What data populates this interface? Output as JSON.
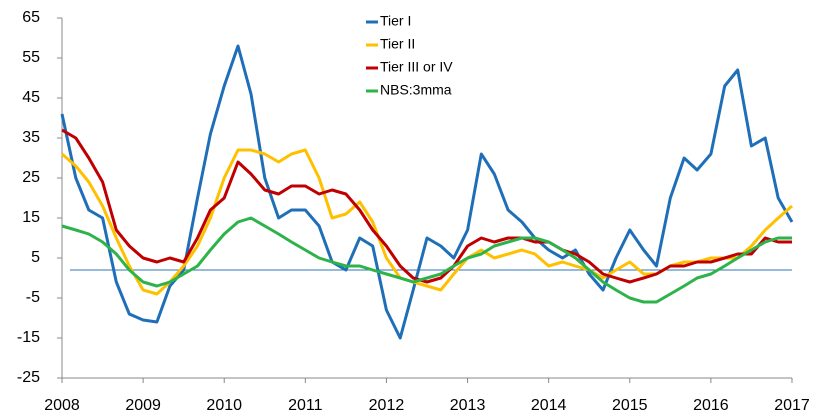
{
  "chart_data": {
    "type": "line",
    "x": [
      2008,
      2008.17,
      2008.33,
      2008.5,
      2008.67,
      2008.83,
      2009,
      2009.17,
      2009.33,
      2009.5,
      2009.67,
      2009.83,
      2010,
      2010.17,
      2010.33,
      2010.5,
      2010.67,
      2010.83,
      2011,
      2011.17,
      2011.33,
      2011.5,
      2011.67,
      2011.83,
      2012,
      2012.17,
      2012.33,
      2012.5,
      2012.67,
      2012.83,
      2013,
      2013.17,
      2013.33,
      2013.5,
      2013.67,
      2013.83,
      2014,
      2014.17,
      2014.33,
      2014.5,
      2014.67,
      2014.83,
      2015,
      2015.17,
      2015.33,
      2015.5,
      2015.67,
      2015.83,
      2016,
      2016.17,
      2016.33,
      2016.5,
      2016.67,
      2016.83,
      2017
    ],
    "series": [
      {
        "name": "Tier I",
        "color": "#1f6fb8",
        "values": [
          41,
          25,
          17,
          15,
          -1,
          -9,
          -10.5,
          -11,
          -2,
          2,
          20,
          36,
          48,
          58,
          46,
          25,
          15,
          17,
          17,
          13,
          4,
          2,
          10,
          8,
          -8,
          -15,
          -3,
          10,
          8,
          5,
          12,
          31,
          26,
          17,
          14,
          10,
          7,
          5,
          7,
          1,
          -3,
          5,
          12,
          7,
          3,
          20,
          30,
          27,
          31,
          48,
          52,
          33,
          35,
          20,
          14
        ]
      },
      {
        "name": "Tier II",
        "color": "#ffc000",
        "values": [
          31,
          28,
          24,
          18,
          10,
          3,
          -3,
          -4,
          -1,
          3,
          8,
          15,
          25,
          32,
          32,
          31,
          29,
          31,
          32,
          25,
          15,
          16,
          19,
          14,
          5,
          0,
          -1,
          -2,
          -3,
          1,
          5,
          7,
          5,
          6,
          7,
          6,
          3,
          4,
          3,
          2,
          0,
          2,
          4,
          1,
          1,
          3,
          4,
          4,
          5,
          5,
          5,
          8,
          12,
          15,
          18
        ]
      },
      {
        "name": "Tier III or IV",
        "color": "#c00000",
        "values": [
          37,
          35,
          30,
          24,
          12,
          8,
          5,
          4,
          5,
          4,
          10,
          17,
          20,
          29,
          26,
          22,
          21,
          23,
          23,
          21,
          22,
          21,
          17,
          12,
          8,
          3,
          0,
          -1,
          0,
          3,
          8,
          10,
          9,
          10,
          10,
          9,
          9,
          7,
          6,
          4,
          1,
          0,
          -1,
          0,
          1,
          3,
          3,
          4,
          4,
          5,
          6,
          6,
          10,
          9,
          9
        ]
      },
      {
        "name": "NBS:3mma",
        "color": "#2db34a",
        "values": [
          13,
          12,
          11,
          9,
          6,
          2,
          -1,
          -2,
          -1,
          1,
          3,
          7,
          11,
          14,
          15,
          13,
          11,
          9,
          7,
          5,
          4,
          3,
          3,
          2,
          1,
          0,
          -1,
          0,
          1,
          3,
          5,
          6,
          8,
          9,
          10,
          10,
          9,
          7,
          5,
          2,
          -1,
          -3,
          -5,
          -6,
          -6,
          -4,
          -2,
          0,
          1,
          3,
          5,
          7,
          9,
          10,
          10
        ]
      }
    ],
    "xlim": [
      2008,
      2017
    ],
    "xticks": [
      2008,
      2009,
      2010,
      2011,
      2012,
      2013,
      2014,
      2015,
      2016,
      2017
    ],
    "ylim": [
      -25,
      65
    ],
    "yticks": [
      -25,
      -15,
      -5,
      5,
      15,
      25,
      35,
      45,
      55,
      65
    ],
    "hline": 2,
    "hline_color": "#2e75b6",
    "legend": "upper center",
    "grid": false
  }
}
